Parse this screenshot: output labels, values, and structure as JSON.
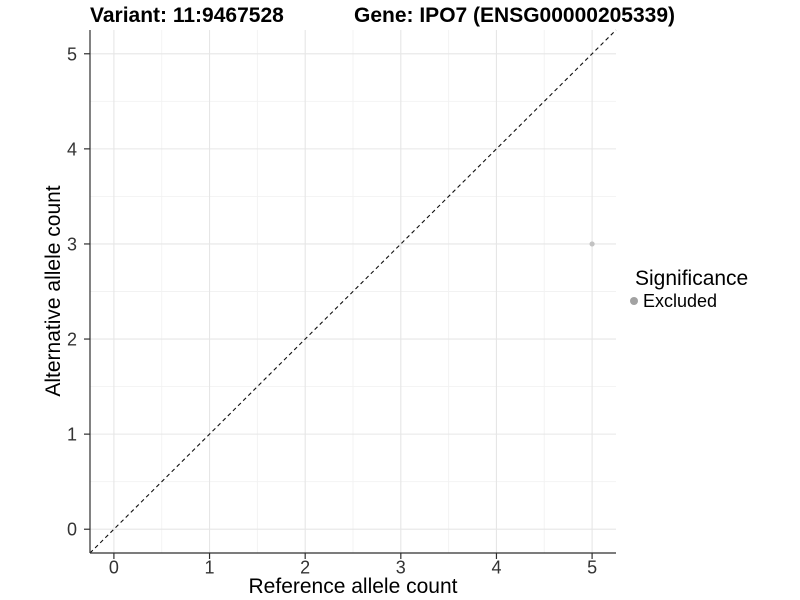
{
  "chart_data": {
    "type": "scatter",
    "title_left": "Variant: 11:9467528",
    "title_right": "Gene: IPO7 (ENSG00000205339)",
    "xlabel": "Reference allele count",
    "ylabel": "Alternative allele count",
    "xlim": [
      -0.25,
      5.25
    ],
    "ylim": [
      -0.25,
      5.25
    ],
    "xticks": [
      0,
      1,
      2,
      3,
      4,
      5
    ],
    "yticks": [
      0,
      1,
      2,
      3,
      4,
      5
    ],
    "minor_gridlines_x": [
      0.5,
      1.5,
      2.5,
      3.5,
      4.5
    ],
    "minor_gridlines_y": [
      0.5,
      1.5,
      2.5,
      3.5,
      4.5
    ],
    "grid": "major+minor",
    "reference_line": {
      "type": "identity y=x",
      "style": "dashed",
      "color": "#111111"
    },
    "series": [
      {
        "name": "Excluded",
        "points": [
          {
            "x": 5,
            "y": 3
          }
        ],
        "color": "#c2c2c2",
        "point_radius": 2.6
      }
    ],
    "legend": {
      "title": "Significance",
      "position": "right",
      "items": [
        {
          "label": "Excluded",
          "color": "#a2a2a2"
        }
      ]
    },
    "colors": {
      "grid_major": "#e6e6e6",
      "grid_minor": "#f2f2f2",
      "axis_line": "#2e2e2e",
      "tick_label": "#333333",
      "background": "#ffffff"
    }
  }
}
